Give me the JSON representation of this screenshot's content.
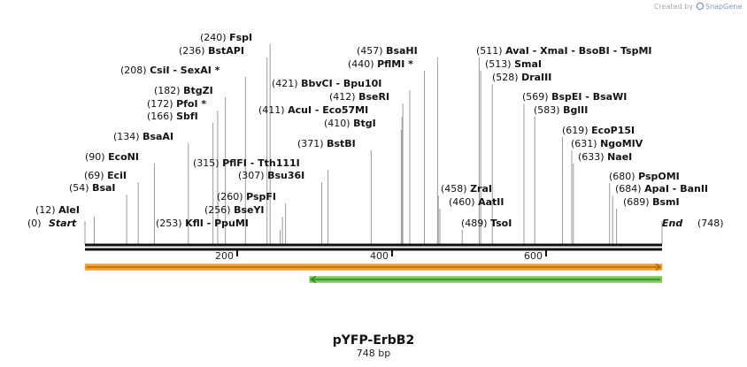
{
  "header": {
    "credit_prefix": "Created by",
    "brand": "SnapGene"
  },
  "map": {
    "name": "pYFP-ErbB2",
    "length_label": "748 bp",
    "total_bp": 748,
    "start_label": "Start",
    "start_pos": "(0)",
    "end_label": "End",
    "end_pos": "(748)",
    "ticks": [
      "200",
      "400",
      "600"
    ],
    "features": [
      {
        "name": "orange-feature",
        "direction": "forward",
        "start_bp": 1,
        "end_bp": 748,
        "color": "#f0a030",
        "stroke": "#b06a00"
      },
      {
        "name": "green-feature",
        "direction": "reverse",
        "start_bp": 292,
        "end_bp": 748,
        "color": "#7cc85a",
        "stroke": "#2f8a1c"
      }
    ],
    "enzymes": [
      {
        "pos": "(12)",
        "name": "AleI"
      },
      {
        "pos": "(54)",
        "name": "BsaI"
      },
      {
        "pos": "(69)",
        "name": "EciI"
      },
      {
        "pos": "(90)",
        "name": "EcoNI"
      },
      {
        "pos": "(134)",
        "name": "BsaAI"
      },
      {
        "pos": "(166)",
        "name": "SbfI"
      },
      {
        "pos": "(172)",
        "name": "PfoI *"
      },
      {
        "pos": "(182)",
        "name": "BtgZI"
      },
      {
        "pos": "(208)",
        "name": "CsiI - SexAI *"
      },
      {
        "pos": "(236)",
        "name": "BstAPI"
      },
      {
        "pos": "(240)",
        "name": "FspI"
      },
      {
        "pos": "(253)",
        "name": "KflI - PpuMI"
      },
      {
        "pos": "(256)",
        "name": "BseYI"
      },
      {
        "pos": "(260)",
        "name": "PspFI"
      },
      {
        "pos": "(307)",
        "name": "Bsu36I"
      },
      {
        "pos": "(315)",
        "name": "PflFI - Tth111I"
      },
      {
        "pos": "(371)",
        "name": "BstBI"
      },
      {
        "pos": "(410)",
        "name": "BtgI"
      },
      {
        "pos": "(411)",
        "name": "AcuI - Eco57MI"
      },
      {
        "pos": "(412)",
        "name": "BseRI"
      },
      {
        "pos": "(421)",
        "name": "BbvCI - Bpu10I"
      },
      {
        "pos": "(440)",
        "name": "PflMI *"
      },
      {
        "pos": "(457)",
        "name": "BsaHI"
      },
      {
        "pos": "(458)",
        "name": "ZraI"
      },
      {
        "pos": "(460)",
        "name": "AatII"
      },
      {
        "pos": "(489)",
        "name": "TsoI"
      },
      {
        "pos": "(511)",
        "name": "AvaI - XmaI - BsoBI - TspMI"
      },
      {
        "pos": "(513)",
        "name": "SmaI"
      },
      {
        "pos": "(528)",
        "name": "DraIII"
      },
      {
        "pos": "(569)",
        "name": "BspEI - BsaWI"
      },
      {
        "pos": "(583)",
        "name": "BglII"
      },
      {
        "pos": "(619)",
        "name": "EcoP15I"
      },
      {
        "pos": "(631)",
        "name": "NgoMIV"
      },
      {
        "pos": "(633)",
        "name": "NaeI"
      },
      {
        "pos": "(680)",
        "name": "PspOMI"
      },
      {
        "pos": "(684)",
        "name": "ApaI - BanII"
      },
      {
        "pos": "(689)",
        "name": "BsmI"
      }
    ]
  }
}
